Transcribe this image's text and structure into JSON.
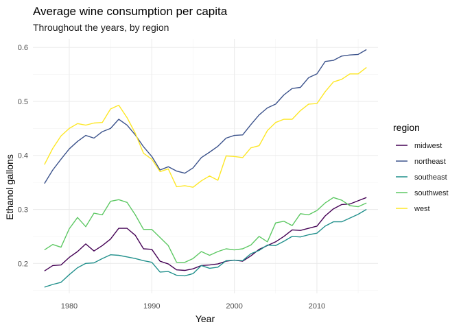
{
  "chart_data": {
    "type": "line",
    "title": "Average wine consumption per capita",
    "subtitle": "Throughout the years, by region",
    "xlabel": "Year",
    "ylabel": "Ethanol gallons",
    "xlim": [
      1975.6,
      2017.4
    ],
    "ylim": [
      0.1445,
      0.6155
    ],
    "xticks": [
      1980,
      1990,
      2000,
      2010
    ],
    "yticks": [
      0.2,
      0.3,
      0.4,
      0.5,
      0.6
    ],
    "ytick_labels": [
      "0.2",
      "0.3",
      "0.4",
      "0.5",
      "0.6"
    ],
    "grid": true,
    "legend_title": "region",
    "legend_position": "right",
    "x": [
      1977,
      1978,
      1979,
      1980,
      1981,
      1982,
      1983,
      1984,
      1985,
      1986,
      1987,
      1988,
      1989,
      1990,
      1991,
      1992,
      1993,
      1994,
      1995,
      1996,
      1997,
      1998,
      1999,
      2000,
      2001,
      2002,
      2003,
      2004,
      2005,
      2006,
      2007,
      2008,
      2009,
      2010,
      2011,
      2012,
      2013,
      2014,
      2015,
      2016
    ],
    "series": [
      {
        "name": "midwest",
        "color": "#440154",
        "values": [
          0.186,
          0.196,
          0.197,
          0.211,
          0.222,
          0.236,
          0.223,
          0.233,
          0.245,
          0.265,
          0.265,
          0.252,
          0.227,
          0.226,
          0.204,
          0.199,
          0.188,
          0.187,
          0.19,
          0.196,
          0.197,
          0.199,
          0.204,
          0.206,
          0.204,
          0.214,
          0.226,
          0.233,
          0.24,
          0.25,
          0.262,
          0.261,
          0.265,
          0.269,
          0.288,
          0.301,
          0.309,
          0.31,
          0.316,
          0.322
        ]
      },
      {
        "name": "northeast",
        "color": "#3b528b",
        "values": [
          0.348,
          0.373,
          0.393,
          0.412,
          0.426,
          0.437,
          0.432,
          0.444,
          0.45,
          0.467,
          0.456,
          0.438,
          0.416,
          0.398,
          0.373,
          0.379,
          0.371,
          0.367,
          0.377,
          0.396,
          0.406,
          0.417,
          0.432,
          0.437,
          0.438,
          0.457,
          0.475,
          0.488,
          0.495,
          0.512,
          0.524,
          0.526,
          0.544,
          0.551,
          0.574,
          0.576,
          0.584,
          0.586,
          0.587,
          0.596
        ]
      },
      {
        "name": "southeast",
        "color": "#21908c",
        "values": [
          0.156,
          0.161,
          0.165,
          0.179,
          0.192,
          0.2,
          0.201,
          0.209,
          0.216,
          0.215,
          0.212,
          0.209,
          0.205,
          0.202,
          0.184,
          0.185,
          0.178,
          0.177,
          0.181,
          0.196,
          0.191,
          0.193,
          0.205,
          0.206,
          0.205,
          0.218,
          0.224,
          0.234,
          0.233,
          0.241,
          0.25,
          0.249,
          0.253,
          0.256,
          0.269,
          0.277,
          0.277,
          0.284,
          0.291,
          0.3
        ]
      },
      {
        "name": "southwest",
        "color": "#5dc863",
        "values": [
          0.225,
          0.235,
          0.23,
          0.264,
          0.285,
          0.268,
          0.293,
          0.29,
          0.315,
          0.318,
          0.313,
          0.29,
          0.263,
          0.263,
          0.248,
          0.233,
          0.202,
          0.202,
          0.209,
          0.222,
          0.215,
          0.222,
          0.227,
          0.225,
          0.227,
          0.234,
          0.25,
          0.24,
          0.275,
          0.278,
          0.27,
          0.292,
          0.29,
          0.298,
          0.312,
          0.322,
          0.317,
          0.307,
          0.305,
          0.312
        ]
      },
      {
        "name": "west",
        "color": "#fde725",
        "values": [
          0.383,
          0.413,
          0.436,
          0.45,
          0.459,
          0.456,
          0.46,
          0.461,
          0.486,
          0.493,
          0.47,
          0.441,
          0.404,
          0.393,
          0.37,
          0.375,
          0.342,
          0.344,
          0.341,
          0.353,
          0.362,
          0.354,
          0.399,
          0.398,
          0.396,
          0.414,
          0.418,
          0.446,
          0.461,
          0.467,
          0.467,
          0.483,
          0.495,
          0.496,
          0.518,
          0.536,
          0.541,
          0.551,
          0.551,
          0.563
        ]
      }
    ]
  }
}
